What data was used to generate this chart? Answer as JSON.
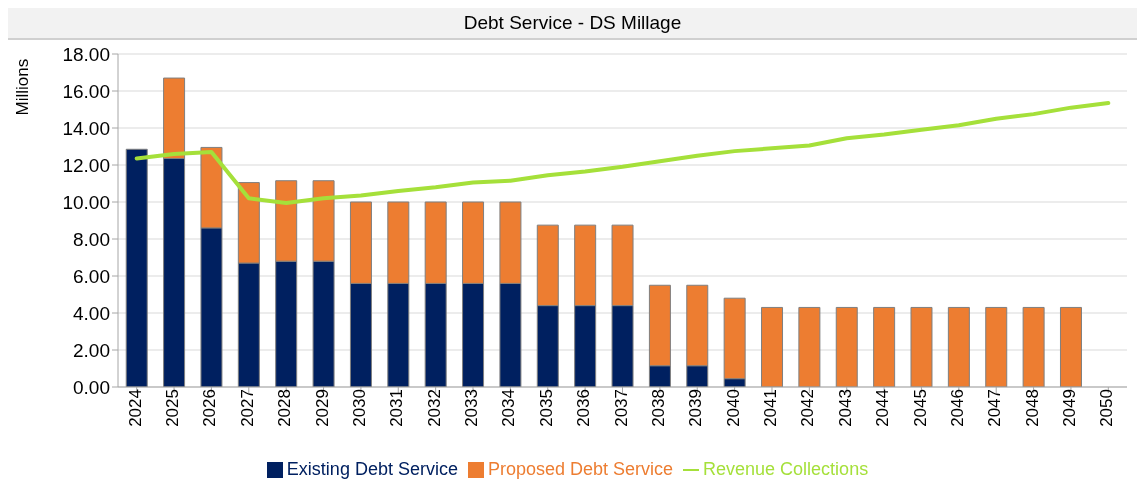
{
  "chart_data": {
    "type": "bar",
    "title": "Debt Service - DS Millage",
    "ylabel": "Millions",
    "stacked": true,
    "categories": [
      "2024",
      "2025",
      "2026",
      "2027",
      "2028",
      "2029",
      "2030",
      "2031",
      "2032",
      "2033",
      "2034",
      "2035",
      "2036",
      "2037",
      "2038",
      "2039",
      "2040",
      "2041",
      "2042",
      "2043",
      "2044",
      "2045",
      "2046",
      "2047",
      "2048",
      "2049",
      "2050"
    ],
    "series": [
      {
        "name": "Existing Debt Service",
        "color": "#002060",
        "values": [
          12.85,
          12.35,
          8.6,
          6.7,
          6.8,
          6.8,
          5.6,
          5.6,
          5.6,
          5.6,
          5.6,
          4.4,
          4.4,
          4.4,
          1.15,
          1.15,
          0.45,
          null,
          null,
          null,
          null,
          null,
          null,
          null,
          null,
          null,
          null
        ]
      },
      {
        "name": "Proposed Debt Service",
        "color": "#ed7d31",
        "values": [
          null,
          4.35,
          4.35,
          4.35,
          4.35,
          4.35,
          4.4,
          4.4,
          4.4,
          4.4,
          4.4,
          4.35,
          4.35,
          4.35,
          4.35,
          4.35,
          4.35,
          4.3,
          4.3,
          4.3,
          4.3,
          4.3,
          4.3,
          4.3,
          4.3,
          4.3,
          null
        ]
      },
      {
        "name": "Revenue Collections",
        "type": "line",
        "color": "#a5e03a",
        "values": [
          12.35,
          12.6,
          12.7,
          10.2,
          9.95,
          10.2,
          10.35,
          10.6,
          10.8,
          11.05,
          11.15,
          11.45,
          11.65,
          11.9,
          12.2,
          12.5,
          12.75,
          12.9,
          13.05,
          13.45,
          13.65,
          13.9,
          14.15,
          14.5,
          14.75,
          15.1,
          15.35
        ]
      }
    ],
    "ylim": [
      0,
      18
    ],
    "yticks": [
      {
        "value": 0,
        "label": "0.00"
      },
      {
        "value": 2,
        "label": "2.00"
      },
      {
        "value": 4,
        "label": "4.00"
      },
      {
        "value": 6,
        "label": "6.00"
      },
      {
        "value": 8,
        "label": "8.00"
      },
      {
        "value": 10,
        "label": "10.00"
      },
      {
        "value": 12,
        "label": "12.00"
      },
      {
        "value": 14,
        "label": "14.00"
      },
      {
        "value": 16,
        "label": "16.00"
      },
      {
        "value": 18,
        "label": "18.00"
      }
    ],
    "grid": "y",
    "legend": "bottom",
    "marker": "none",
    "line_style": "solid"
  }
}
